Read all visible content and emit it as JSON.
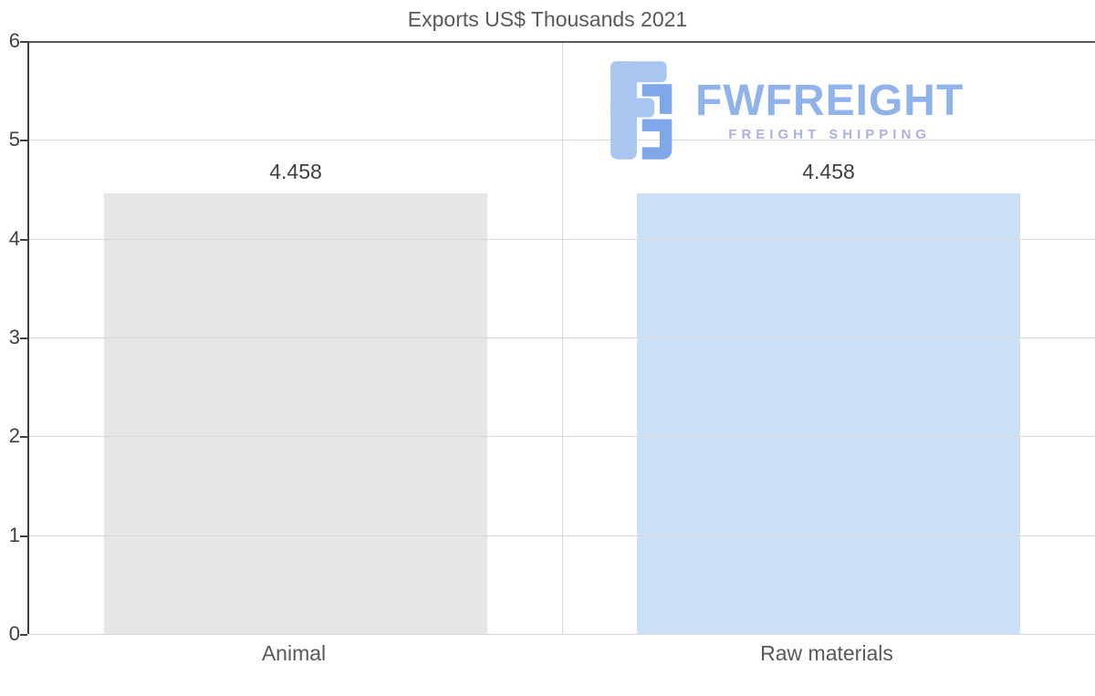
{
  "title": "Exports US$ Thousands 2021",
  "watermark": {
    "name": "FWFREIGHT",
    "tagline": "FREIGHT SHIPPING",
    "color_main": "#8fb3ea",
    "color_tagline": "#a9b2e0",
    "color_glyph_light": "#a9c6f1",
    "color_glyph_dark": "#7ea8ea"
  },
  "chart_data": {
    "type": "bar",
    "title": "Exports US$ Thousands 2021",
    "categories": [
      "Animal",
      "Raw materials"
    ],
    "values": [
      4.458,
      4.458
    ],
    "value_labels": [
      "4.458",
      "4.458"
    ],
    "bar_colors": [
      "#e6e6e6",
      "#cbe0f6"
    ],
    "ylim": [
      0,
      6
    ],
    "yticks": [
      0,
      1,
      2,
      3,
      4,
      5,
      6
    ],
    "grid": true,
    "legend": "none",
    "xlabel": "",
    "ylabel": ""
  }
}
